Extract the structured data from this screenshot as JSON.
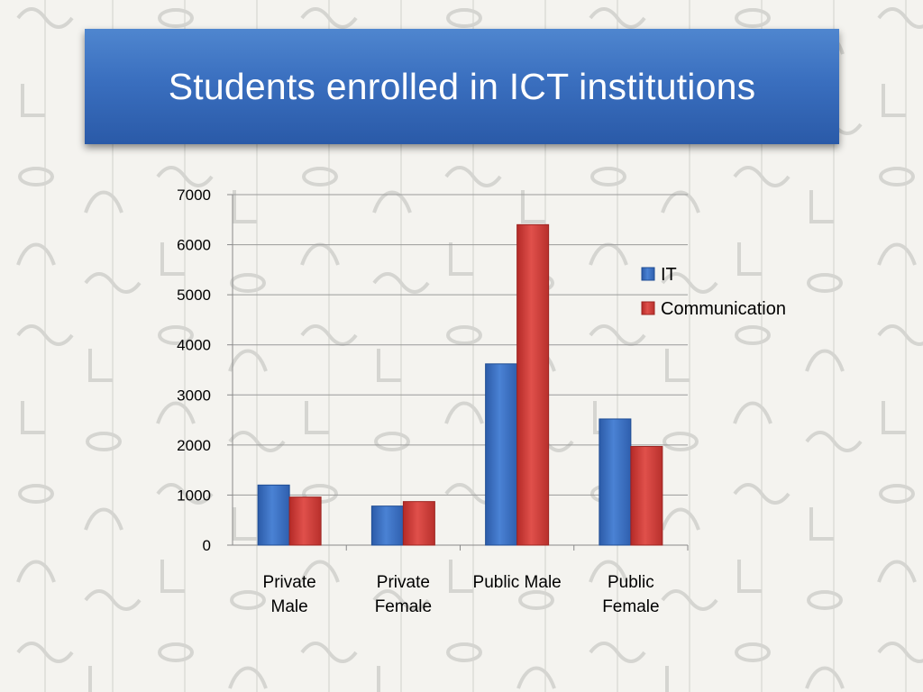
{
  "slide": {
    "title": "Students enrolled in ICT institutions",
    "colors": {
      "title_banner": "#3a6fbf",
      "title_text": "#ffffff",
      "background": "#f4f3ef",
      "glyph_pattern": "#d6d6d2"
    },
    "background_pattern": "hieroglyph-papyrus"
  },
  "chart_data": {
    "type": "bar",
    "title": "",
    "xlabel": "",
    "ylabel": "",
    "categories": [
      [
        "Private",
        "Male"
      ],
      [
        "Private",
        "Female"
      ],
      [
        "Public Male"
      ],
      [
        "Public",
        "Female"
      ]
    ],
    "series": [
      {
        "name": "IT",
        "color": "#3b6fc4",
        "values": [
          1200,
          780,
          3620,
          2520
        ]
      },
      {
        "name": "Communication",
        "color": "#d23a36",
        "values": [
          960,
          870,
          6400,
          1970
        ]
      }
    ],
    "ylim": [
      0,
      7000
    ],
    "yticks": [
      0,
      1000,
      2000,
      3000,
      4000,
      5000,
      6000,
      7000
    ],
    "grid": true,
    "legend_position": "right"
  }
}
